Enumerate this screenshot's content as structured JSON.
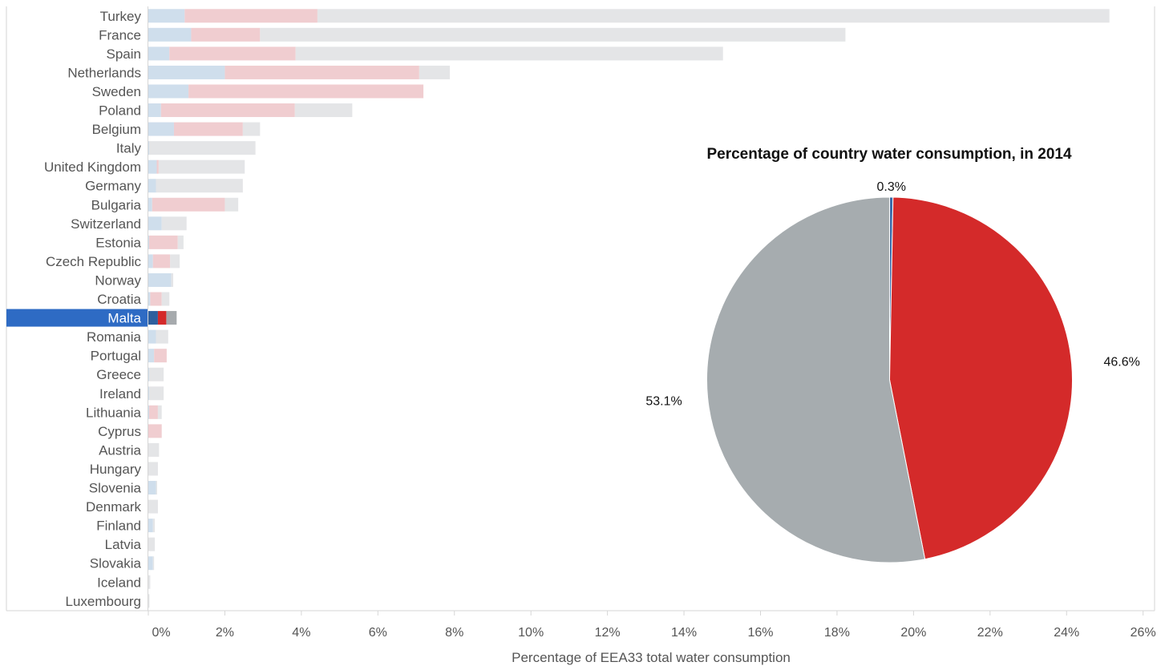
{
  "chart_data": [
    {
      "type": "bar",
      "orientation": "horizontal",
      "stacked": true,
      "xlabel": "Percentage of EEA33 total water consumption",
      "x_ticks": [
        "0%",
        "2%",
        "4%",
        "6%",
        "8%",
        "10%",
        "12%",
        "14%",
        "16%",
        "18%",
        "20%",
        "22%",
        "24%",
        "26%"
      ],
      "xlim": [
        0,
        26.3
      ],
      "selected_category": "Malta",
      "categories": [
        "Turkey",
        "France",
        "Spain",
        "Netherlands",
        "Sweden",
        "Poland",
        "Belgium",
        "Italy",
        "United Kingdom",
        "Germany",
        "Bulgaria",
        "Switzerland",
        "Estonia",
        "Czech Republic",
        "Norway",
        "Croatia",
        "Malta",
        "Romania",
        "Portugal",
        "Greece",
        "Ireland",
        "Lithuania",
        "Cyprus",
        "Austria",
        "Hungary",
        "Slovenia",
        "Denmark",
        "Finland",
        "Latvia",
        "Slovakia",
        "Iceland",
        "Luxembourg"
      ],
      "series": [
        {
          "color": "#cfdeec",
          "values": [
            0.95,
            1.12,
            0.55,
            2.0,
            1.05,
            0.33,
            0.67,
            0.02,
            0.22,
            0.2,
            0.1,
            0.35,
            0.02,
            0.12,
            0.6,
            0.05,
            0.25,
            0.2,
            0.15,
            0.02,
            0.02,
            0.02,
            0.0,
            0.0,
            0.0,
            0.2,
            0.0,
            0.12,
            0.0,
            0.12,
            0.0,
            0.0
          ]
        },
        {
          "color": "#f0cdd0",
          "values": [
            3.47,
            1.8,
            3.3,
            5.08,
            6.14,
            3.5,
            1.8,
            0.0,
            0.05,
            0.0,
            1.9,
            0.0,
            0.75,
            0.45,
            0.0,
            0.3,
            0.22,
            0.0,
            0.33,
            0.0,
            0.0,
            0.23,
            0.35,
            0.0,
            0.0,
            0.0,
            0.0,
            0.0,
            0.0,
            0.0,
            0.0,
            0.0
          ]
        },
        {
          "color": "#e4e5e7",
          "values": [
            20.7,
            15.3,
            11.17,
            0.8,
            0.0,
            1.5,
            0.45,
            2.78,
            2.25,
            2.27,
            0.35,
            0.65,
            0.15,
            0.25,
            0.05,
            0.2,
            0.27,
            0.32,
            0.0,
            0.38,
            0.38,
            0.1,
            0.0,
            0.28,
            0.25,
            0.03,
            0.25,
            0.05,
            0.17,
            0.03,
            0.05,
            0.03
          ]
        }
      ],
      "selected_colors": [
        "#2e5f9e",
        "#d42a2a",
        "#a6aaad"
      ]
    },
    {
      "type": "pie",
      "title": "Percentage of country water consumption, in 2014",
      "slices": [
        {
          "value": 0.3,
          "label": "0.3%",
          "color": "#3a6aa8"
        },
        {
          "value": 46.6,
          "label": "46.6%",
          "color": "#d42a2a"
        },
        {
          "value": 53.1,
          "label": "53.1%",
          "color": "#a6acaf"
        }
      ]
    }
  ]
}
